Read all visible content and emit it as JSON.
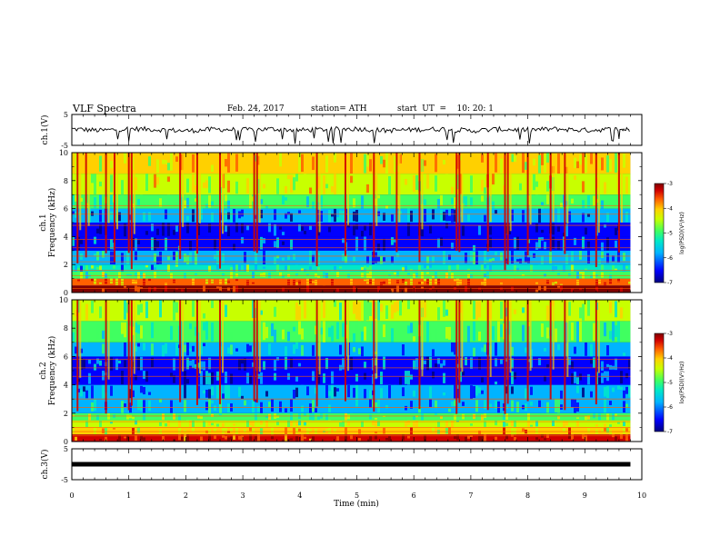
{
  "header": {
    "title": "VLF Spectra",
    "date": "Feb. 24, 2017",
    "station": "station= ATH",
    "start": "start  UT  =    10: 20: 1"
  },
  "colorbar": {
    "label": "log(PSD)(V²/Hz)",
    "ticks": [
      "-3",
      "-4",
      "-5",
      "-6",
      "-7"
    ]
  },
  "chart_data": [
    {
      "type": "line",
      "name": "ch1-waveform",
      "ylabel": "ch.1(V)",
      "ylim": [
        -5,
        5
      ],
      "yticks": [
        "5",
        "-5"
      ],
      "x": [
        0.0,
        0.5,
        1.0,
        1.5,
        2.0,
        2.5,
        3.0,
        3.5,
        4.0,
        4.5,
        5.0,
        5.5,
        6.0,
        6.5,
        7.0,
        7.5,
        8.0,
        8.5,
        9.0,
        9.5,
        9.8
      ],
      "values": [
        0.3,
        -0.2,
        0.4,
        0.1,
        -0.3,
        0.2,
        0.0,
        0.3,
        -0.1,
        0.2,
        0.4,
        -0.2,
        0.1,
        0.3,
        -0.3,
        0.2,
        0.0,
        0.3,
        -0.1,
        0.2,
        0.1
      ]
    },
    {
      "type": "heatmap",
      "name": "ch1-spectrogram",
      "ylabel": "ch.1  Frequency  (kHz)",
      "ylim": [
        0,
        10
      ],
      "yticks": [
        "10",
        "8",
        "6",
        "4",
        "2",
        "0"
      ],
      "colorscale": [
        "#000080",
        "#0000ff",
        "#00b4ff",
        "#00e8c8",
        "#40ff60",
        "#c8ff00",
        "#ffd000",
        "#ff6000",
        "#d00000",
        "#800000"
      ],
      "zlim": [
        -7,
        -3
      ],
      "bands": [
        {
          "f": [
            0.0,
            0.5
          ],
          "level": -3.3
        },
        {
          "f": [
            0.5,
            1.0
          ],
          "level": -4.1
        },
        {
          "f": [
            1.0,
            1.5
          ],
          "level": -5.2
        },
        {
          "f": [
            1.5,
            2.0
          ],
          "level": -5.6
        },
        {
          "f": [
            2.0,
            3.0
          ],
          "level": -5.9
        },
        {
          "f": [
            3.0,
            4.0
          ],
          "level": -6.2
        },
        {
          "f": [
            4.0,
            5.0
          ],
          "level": -6.6
        },
        {
          "f": [
            5.0,
            6.0
          ],
          "level": -6.1
        },
        {
          "f": [
            6.0,
            7.0
          ],
          "level": -5.3
        },
        {
          "f": [
            7.0,
            8.5
          ],
          "level": -4.7
        },
        {
          "f": [
            8.5,
            10.0
          ],
          "level": -4.5
        }
      ],
      "lines_khz": [
        0.3,
        0.6,
        0.8,
        1.2,
        1.6,
        2.2,
        2.6,
        3.2,
        3.8,
        4.8,
        5.6,
        6.2
      ],
      "sferics_min": [
        0.1,
        0.25,
        0.6,
        0.75,
        1.0,
        1.05,
        1.9,
        2.2,
        2.6,
        3.2,
        3.25,
        4.3,
        4.8,
        5.3,
        5.7,
        6.1,
        6.75,
        6.8,
        7.3,
        7.6,
        7.65,
        8.0,
        8.4,
        8.65,
        9.2,
        9.6
      ]
    },
    {
      "type": "heatmap",
      "name": "ch2-spectrogram",
      "ylabel": "ch.2  Frequency  (kHz)",
      "ylim": [
        0,
        10
      ],
      "yticks": [
        "10",
        "8",
        "6",
        "4",
        "2",
        "0"
      ],
      "colorscale": [
        "#000080",
        "#0000ff",
        "#00b4ff",
        "#00e8c8",
        "#40ff60",
        "#c8ff00",
        "#ffd000",
        "#ff6000",
        "#d00000",
        "#800000"
      ],
      "zlim": [
        -7,
        -3
      ],
      "bands": [
        {
          "f": [
            0.0,
            0.5
          ],
          "level": -3.6
        },
        {
          "f": [
            0.5,
            1.0
          ],
          "level": -4.4
        },
        {
          "f": [
            1.0,
            1.5
          ],
          "level": -4.9
        },
        {
          "f": [
            1.5,
            2.0
          ],
          "level": -5.1
        },
        {
          "f": [
            2.0,
            3.0
          ],
          "level": -5.9
        },
        {
          "f": [
            3.0,
            4.0
          ],
          "level": -6.1
        },
        {
          "f": [
            4.0,
            5.0
          ],
          "level": -6.3
        },
        {
          "f": [
            5.0,
            6.0
          ],
          "level": -6.2
        },
        {
          "f": [
            6.0,
            7.0
          ],
          "level": -5.9
        },
        {
          "f": [
            7.0,
            8.5
          ],
          "level": -5.3
        },
        {
          "f": [
            8.5,
            10.0
          ],
          "level": -4.9
        }
      ],
      "lines_khz": [
        0.4,
        0.7,
        1.0,
        1.4,
        1.8,
        2.4,
        3.0,
        4.6,
        5.2,
        5.8
      ],
      "sferics_min": [
        0.1,
        0.6,
        1.0,
        1.05,
        1.9,
        2.2,
        2.6,
        3.2,
        3.25,
        4.3,
        4.8,
        5.3,
        6.1,
        6.75,
        6.8,
        7.3,
        7.6,
        7.65,
        8.0,
        8.4,
        8.65,
        9.2
      ]
    },
    {
      "type": "line",
      "name": "ch3-waveform",
      "ylabel": "ch.3(V)",
      "ylim": [
        -5,
        5
      ],
      "yticks": [
        "5",
        "-5"
      ],
      "x": [
        0.0,
        9.8
      ],
      "values": [
        0.0,
        0.0
      ]
    }
  ],
  "x_axis": {
    "label": "Time  (min)",
    "ticks": [
      "0",
      "1",
      "2",
      "3",
      "4",
      "5",
      "6",
      "7",
      "8",
      "9",
      "10"
    ],
    "xlim": [
      0,
      10
    ],
    "data_end": 9.8
  }
}
